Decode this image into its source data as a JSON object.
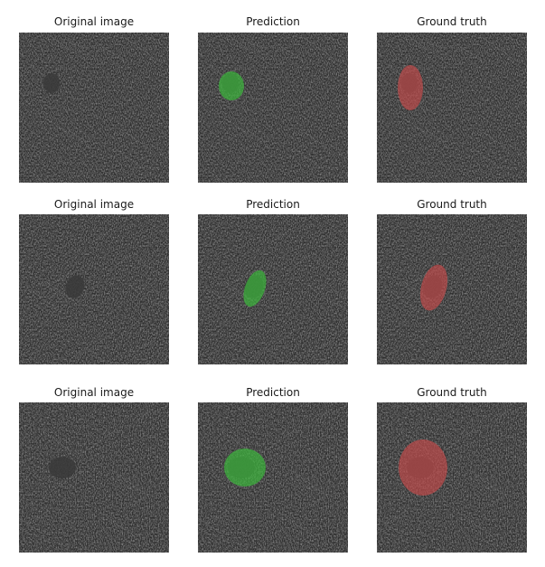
{
  "figure": {
    "rows": [
      {
        "panels": [
          {
            "title": "Original image",
            "overlay": "none"
          },
          {
            "title": "Prediction",
            "overlay": "prediction"
          },
          {
            "title": "Ground truth",
            "overlay": "ground_truth"
          }
        ]
      },
      {
        "panels": [
          {
            "title": "Original image",
            "overlay": "none"
          },
          {
            "title": "Prediction",
            "overlay": "prediction"
          },
          {
            "title": "Ground truth",
            "overlay": "ground_truth"
          }
        ]
      },
      {
        "panels": [
          {
            "title": "Original image",
            "overlay": "none"
          },
          {
            "title": "Prediction",
            "overlay": "prediction"
          },
          {
            "title": "Ground truth",
            "overlay": "ground_truth"
          }
        ]
      }
    ],
    "colors": {
      "prediction_mask": "#3cb83c",
      "ground_truth_mask": "#c24a4a",
      "ultrasound_base": "#2e2e2e",
      "lesion_dark": "#3a3a3a"
    }
  }
}
